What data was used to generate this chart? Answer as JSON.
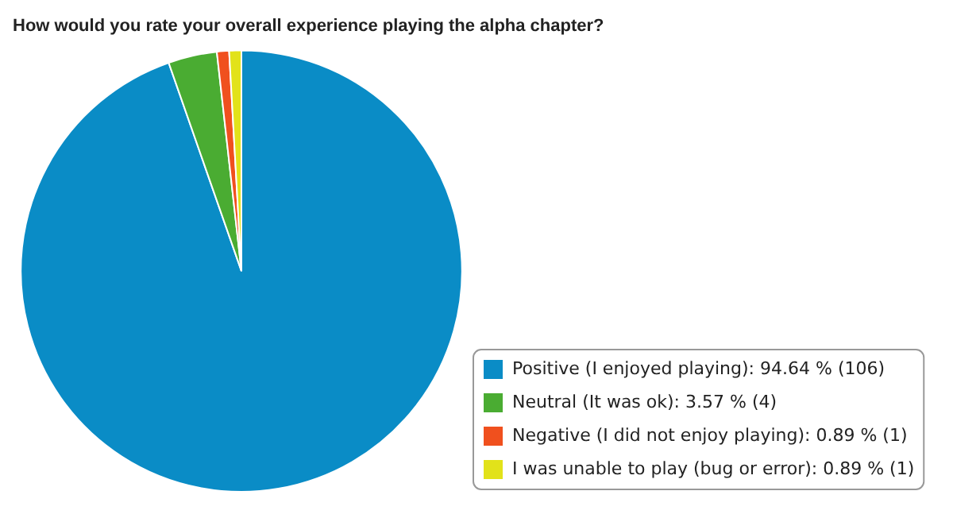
{
  "chart_data": {
    "type": "pie",
    "title": "How would you rate your overall experience playing the alpha chapter?",
    "categories": [
      "Positive (I enjoyed playing): 94.64 % (106)",
      "Neutral (It was ok): 3.57 % (4)",
      "Negative (I did not enjoy playing): 0.89 % (1)",
      "I was unable to play (bug or error): 0.89 % (1)"
    ],
    "values": [
      94.64,
      3.57,
      0.89,
      0.89
    ],
    "colors": [
      "#0a8cc6",
      "#4aac32",
      "#f0501e",
      "#e2e21a"
    ],
    "legend": "bottom right"
  }
}
